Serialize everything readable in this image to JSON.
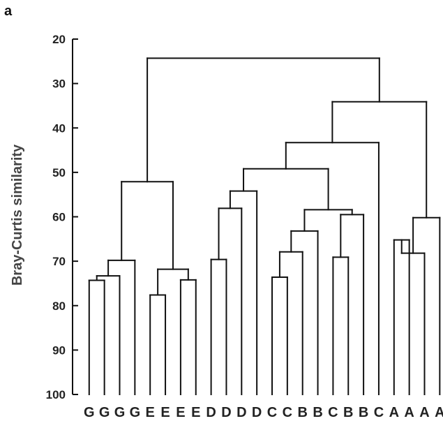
{
  "panel_label": "a",
  "chart_data": {
    "type": "dendrogram",
    "ylabel": "Bray-Curtis similarity",
    "ylim": [
      20,
      100
    ],
    "y_ticks": [
      20,
      30,
      40,
      50,
      60,
      70,
      80,
      90,
      100
    ],
    "leaves": [
      "G",
      "G",
      "G",
      "G",
      "E",
      "E",
      "E",
      "E",
      "D",
      "D",
      "D",
      "D",
      "C",
      "C",
      "B",
      "B",
      "C",
      "B",
      "B",
      "C",
      "A",
      "A",
      "A",
      "A"
    ],
    "merges": [
      {
        "id": "m1",
        "left": "L0",
        "right": "L1",
        "similarity": 74.3
      },
      {
        "id": "m2",
        "left": "m1",
        "right": "L2",
        "similarity": 73.3
      },
      {
        "id": "m3",
        "left": "m2",
        "right": "L3",
        "similarity": 69.8
      },
      {
        "id": "m4",
        "left": "L4",
        "right": "L5",
        "similarity": 77.6
      },
      {
        "id": "m5",
        "left": "L6",
        "right": "L7",
        "similarity": 74.2
      },
      {
        "id": "m6",
        "left": "m4",
        "right": "m5",
        "similarity": 71.8
      },
      {
        "id": "m7",
        "left": "m3",
        "right": "m6",
        "similarity": 52.1
      },
      {
        "id": "m8",
        "left": "L8",
        "right": "L9",
        "similarity": 69.6
      },
      {
        "id": "m9",
        "left": "m8",
        "right": "L10",
        "similarity": 58.1
      },
      {
        "id": "m10",
        "left": "m9",
        "right": "L11",
        "similarity": 54.2
      },
      {
        "id": "m11",
        "left": "L12",
        "right": "L13",
        "similarity": 73.6
      },
      {
        "id": "m12",
        "left": "m11",
        "right": "L14",
        "similarity": 67.9
      },
      {
        "id": "m13",
        "left": "m12",
        "right": "L15",
        "similarity": 63.2
      },
      {
        "id": "m14",
        "left": "L16",
        "right": "L17",
        "similarity": 69.1
      },
      {
        "id": "m15",
        "left": "m14",
        "right": "L18",
        "similarity": 59.5
      },
      {
        "id": "m16",
        "left": "m13",
        "right": "m15",
        "similarity": 58.4
      },
      {
        "id": "m17",
        "left": "m10",
        "right": "m16",
        "similarity": 49.2
      },
      {
        "id": "m18",
        "left": "m17",
        "right": "L19",
        "similarity": 43.3
      },
      {
        "id": "m19",
        "left": "L20",
        "right": "L21",
        "similarity": 65.2
      },
      {
        "id": "m20",
        "left": "m19",
        "right": "L22",
        "similarity": 68.2
      },
      {
        "id": "m21",
        "left": "m20",
        "right": "L23",
        "similarity": 60.2
      },
      {
        "id": "m22",
        "left": "m18",
        "right": "m21",
        "similarity": 34.1
      },
      {
        "id": "m23",
        "left": "m7",
        "right": "m22",
        "similarity": 24.3
      }
    ]
  }
}
